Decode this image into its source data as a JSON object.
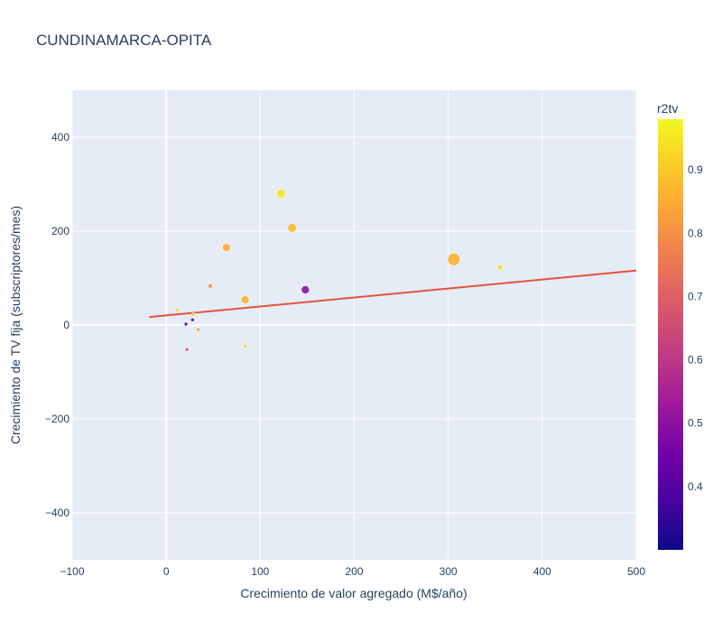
{
  "chart_data": {
    "type": "scatter",
    "title": "CUNDINAMARCA-OPITA",
    "xlabel": "Crecimiento de valor agregado (M$/año)",
    "ylabel": "Crecimiento de TV fija (subscriptores/mes)",
    "xlim": [
      -100,
      500
    ],
    "ylim": [
      -500,
      500
    ],
    "x_ticks": [
      -100,
      0,
      100,
      200,
      300,
      400,
      500
    ],
    "y_ticks": [
      -400,
      -200,
      0,
      200,
      400
    ],
    "grid": true,
    "colorbar": {
      "title": "r2tv",
      "range": [
        0.3,
        0.98
      ],
      "ticks": [
        0.4,
        0.5,
        0.6,
        0.7,
        0.8,
        0.9
      ]
    },
    "points": [
      {
        "x": 122,
        "y": 280,
        "r2tv": 0.95,
        "size": 8
      },
      {
        "x": 134,
        "y": 207,
        "r2tv": 0.88,
        "size": 8
      },
      {
        "x": 64,
        "y": 165,
        "r2tv": 0.85,
        "size": 7
      },
      {
        "x": 306,
        "y": 140,
        "r2tv": 0.86,
        "size": 12
      },
      {
        "x": 355,
        "y": 123,
        "r2tv": 0.93,
        "size": 4
      },
      {
        "x": 47,
        "y": 83,
        "r2tv": 0.8,
        "size": 3
      },
      {
        "x": 148,
        "y": 75,
        "r2tv": 0.5,
        "size": 7
      },
      {
        "x": 84,
        "y": 54,
        "r2tv": 0.86,
        "size": 7
      },
      {
        "x": 12,
        "y": 32,
        "r2tv": 0.93,
        "size": 2
      },
      {
        "x": 29,
        "y": 22,
        "r2tv": 0.9,
        "size": 2
      },
      {
        "x": 28,
        "y": 11,
        "r2tv": 0.42,
        "size": 2
      },
      {
        "x": 21,
        "y": 2,
        "r2tv": 0.4,
        "size": 2
      },
      {
        "x": 34,
        "y": -10,
        "r2tv": 0.8,
        "size": 2
      },
      {
        "x": 84,
        "y": -45,
        "r2tv": 0.9,
        "size": 2
      },
      {
        "x": 22,
        "y": -52,
        "r2tv": 0.65,
        "size": 2
      }
    ],
    "trendline": {
      "x": [
        -18,
        500
      ],
      "y": [
        17,
        116
      ],
      "color": "#e4533a"
    }
  }
}
